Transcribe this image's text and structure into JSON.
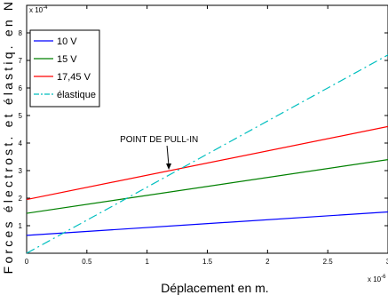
{
  "chart_data": {
    "type": "line",
    "xlabel": "Déplacement en m.",
    "ylabel": "Forces électrost. et élastiq. en N.",
    "x_exponent": "x 10",
    "x_exponent_power": "-6",
    "y_exponent": "x 10",
    "y_exponent_power": "-4",
    "xlim": [
      0,
      3
    ],
    "ylim": [
      0,
      9
    ],
    "xticks": [
      0,
      0.5,
      1,
      1.5,
      2,
      2.5,
      3
    ],
    "xtick_labels": [
      "0",
      "0.5",
      "1",
      "1.5",
      "2",
      "2.5",
      "3"
    ],
    "yticks": [
      1,
      2,
      3,
      4,
      5,
      6,
      7,
      8
    ],
    "ytick_labels": [
      "1",
      "2",
      "3",
      "4",
      "5",
      "6",
      "7",
      "8"
    ],
    "grid": false,
    "legend_position": "top-left",
    "series": [
      {
        "name": "10 V",
        "color": "#0000ff",
        "dash": "solid",
        "x": [
          0,
          3
        ],
        "y": [
          0.65,
          1.5
        ]
      },
      {
        "name": "15 V",
        "color": "#008000",
        "dash": "solid",
        "x": [
          0,
          3
        ],
        "y": [
          1.45,
          3.4
        ]
      },
      {
        "name": "17,45 V",
        "color": "#ff0000",
        "dash": "solid",
        "x": [
          0,
          3
        ],
        "y": [
          1.95,
          4.6
        ]
      },
      {
        "name": "élastique",
        "color": "#00bfbf",
        "dash": "dashdot",
        "x": [
          0,
          3
        ],
        "y": [
          0,
          7.2
        ]
      }
    ],
    "annotations": [
      {
        "text": "POINT DE PULL-IN",
        "x": 1.18,
        "y": 3.0
      }
    ]
  }
}
